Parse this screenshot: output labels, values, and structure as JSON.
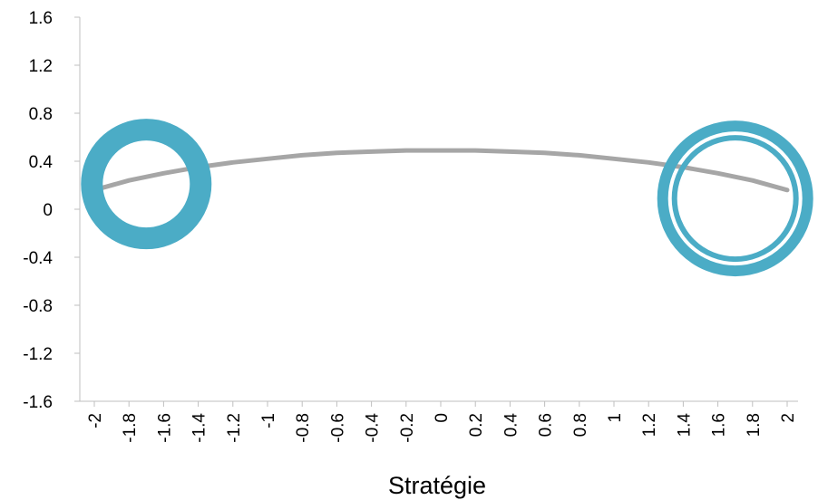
{
  "chart_data": {
    "type": "line",
    "title": "",
    "xlabel": "Stratégie",
    "ylabel": "",
    "xlim": [
      -2.1,
      2.1
    ],
    "ylim": [
      -1.6,
      1.6
    ],
    "x_ticks": [
      "-2",
      "-1.8",
      "-1.6",
      "-1.4",
      "-1.2",
      "-1",
      "-0.8",
      "-0.6",
      "-0.4",
      "-0.2",
      "0",
      "0.2",
      "0.4",
      "0.6",
      "0.8",
      "1",
      "1.2",
      "1.4",
      "1.6",
      "1.8",
      "2"
    ],
    "y_ticks": [
      "1.6",
      "1.2",
      "0.8",
      "0.4",
      "0",
      "-0.4",
      "-0.8",
      "-1.2",
      "-1.6"
    ],
    "grid": false,
    "legend": "none",
    "series": [
      {
        "color": "#a6a6a6",
        "x": [
          -2,
          -1.8,
          -1.6,
          -1.4,
          -1.2,
          -1,
          -0.8,
          -0.6,
          -0.4,
          -0.2,
          0,
          0.2,
          0.4,
          0.6,
          0.8,
          1,
          1.2,
          1.4,
          1.6,
          1.8,
          2
        ],
        "y": [
          0.16,
          0.24,
          0.3,
          0.35,
          0.39,
          0.42,
          0.45,
          0.47,
          0.48,
          0.49,
          0.49,
          0.49,
          0.48,
          0.47,
          0.45,
          0.42,
          0.39,
          0.35,
          0.3,
          0.24,
          0.16
        ]
      }
    ],
    "markers": [
      {
        "x": -1.7,
        "y": 0.21,
        "style": "thick-ring",
        "color": "#4bacc6"
      },
      {
        "x": 1.7,
        "y": 0.09,
        "style": "double-ring",
        "color": "#4bacc6"
      }
    ]
  }
}
